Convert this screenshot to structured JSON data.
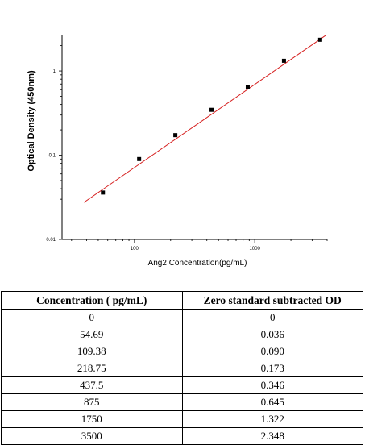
{
  "chart_data": {
    "type": "scatter",
    "xlabel": "Ang2  Concentration(pg/mL)",
    "ylabel": "Optical Density (450nm)",
    "xscale": "log",
    "yscale": "log",
    "xlim": [
      25,
      4000
    ],
    "ylim": [
      0.01,
      2.7
    ],
    "x_ticks": [
      {
        "value": 100,
        "label": "100"
      },
      {
        "value": 1000,
        "label": "1000"
      }
    ],
    "y_ticks": [
      {
        "value": 0.01,
        "label": "0.01"
      },
      {
        "value": 0.1,
        "label": "0.1"
      },
      {
        "value": 1,
        "label": "1"
      }
    ],
    "points": [
      {
        "x": 54.69,
        "y": 0.036
      },
      {
        "x": 109.38,
        "y": 0.09
      },
      {
        "x": 218.75,
        "y": 0.173
      },
      {
        "x": 437.5,
        "y": 0.346
      },
      {
        "x": 875,
        "y": 0.645
      },
      {
        "x": 1750,
        "y": 1.322
      },
      {
        "x": 3500,
        "y": 2.348
      }
    ],
    "fit_line": {
      "x_start": 38,
      "y_start": 0.0275,
      "x_end": 3900,
      "y_end": 2.65
    },
    "marker_color": "#000000",
    "line_color": "#d62020",
    "grid": false
  },
  "table": {
    "headers": [
      "Concentration ( pg/mL)",
      "Zero standard subtracted OD"
    ],
    "rows": [
      [
        "0",
        "0"
      ],
      [
        "54.69",
        "0.036"
      ],
      [
        "109.38",
        "0.090"
      ],
      [
        "218.75",
        "0.173"
      ],
      [
        "437.5",
        "0.346"
      ],
      [
        "875",
        "0.645"
      ],
      [
        "1750",
        "1.322"
      ],
      [
        "3500",
        "2.348"
      ]
    ]
  }
}
